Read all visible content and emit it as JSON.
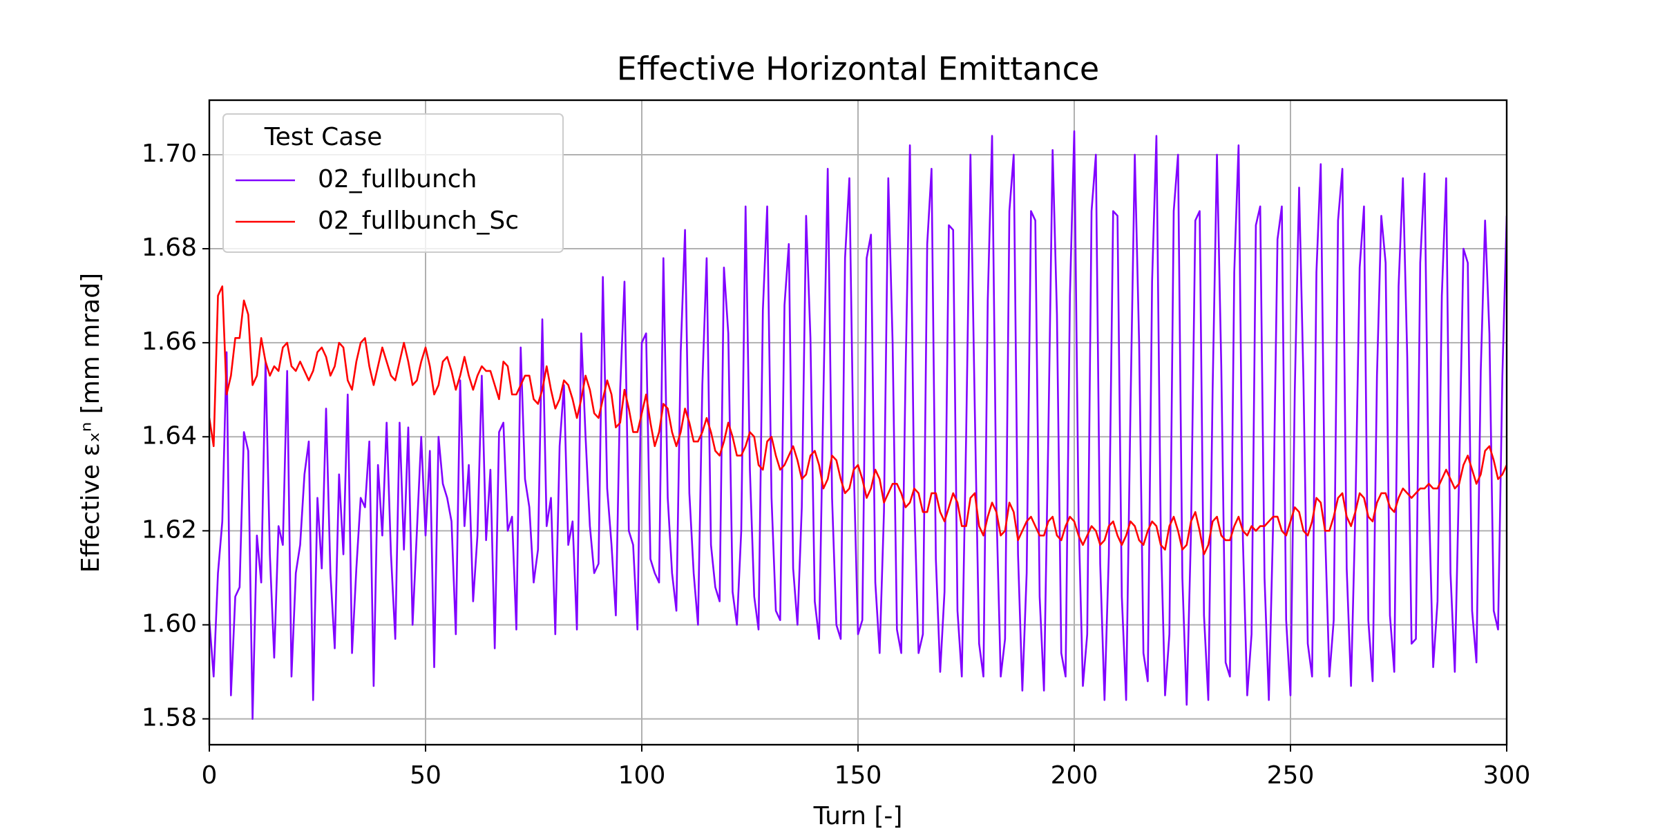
{
  "chart_data": {
    "type": "line",
    "title": "Effective Horizontal Emittance",
    "xlabel": "Turn [-]",
    "ylabel": "Effective εₓⁿ [mm mrad]",
    "legend_title": "Test Case",
    "legend": "upper left",
    "grid": true,
    "xlim": [
      0,
      300
    ],
    "ylim": [
      1.5745,
      1.7116
    ],
    "xticks": [
      0,
      50,
      100,
      150,
      200,
      250,
      300
    ],
    "yticks": [
      1.58,
      {
        "value": 1.6,
        "label": "1.60"
      },
      1.62,
      1.64,
      1.66,
      1.68,
      {
        "value": 1.7,
        "label": "1.70"
      }
    ],
    "x": [
      0,
      1,
      2,
      3,
      4,
      5,
      6,
      7,
      8,
      9,
      10,
      11,
      12,
      13,
      14,
      15,
      16,
      17,
      18,
      19,
      20,
      21,
      22,
      23,
      24,
      25,
      26,
      27,
      28,
      29,
      30,
      31,
      32,
      33,
      34,
      35,
      36,
      37,
      38,
      39,
      40,
      41,
      42,
      43,
      44,
      45,
      46,
      47,
      48,
      49,
      50,
      51,
      52,
      53,
      54,
      55,
      56,
      57,
      58,
      59,
      60,
      61,
      62,
      63,
      64,
      65,
      66,
      67,
      68,
      69,
      70,
      71,
      72,
      73,
      74,
      75,
      76,
      77,
      78,
      79,
      80,
      81,
      82,
      83,
      84,
      85,
      86,
      87,
      88,
      89,
      90,
      91,
      92,
      93,
      94,
      95,
      96,
      97,
      98,
      99,
      100,
      101,
      102,
      103,
      104,
      105,
      106,
      107,
      108,
      109,
      110,
      111,
      112,
      113,
      114,
      115,
      116,
      117,
      118,
      119,
      120,
      121,
      122,
      123,
      124,
      125,
      126,
      127,
      128,
      129,
      130,
      131,
      132,
      133,
      134,
      135,
      136,
      137,
      138,
      139,
      140,
      141,
      142,
      143,
      144,
      145,
      146,
      147,
      148,
      149,
      150,
      151,
      152,
      153,
      154,
      155,
      156,
      157,
      158,
      159,
      160,
      161,
      162,
      163,
      164,
      165,
      166,
      167,
      168,
      169,
      170,
      171,
      172,
      173,
      174,
      175,
      176,
      177,
      178,
      179,
      180,
      181,
      182,
      183,
      184,
      185,
      186,
      187,
      188,
      189,
      190,
      191,
      192,
      193,
      194,
      195,
      196,
      197,
      198,
      199,
      200,
      201,
      202,
      203,
      204,
      205,
      206,
      207,
      208,
      209,
      210,
      211,
      212,
      213,
      214,
      215,
      216,
      217,
      218,
      219,
      220,
      221,
      222,
      223,
      224,
      225,
      226,
      227,
      228,
      229,
      230,
      231,
      232,
      233,
      234,
      235,
      236,
      237,
      238,
      239,
      240,
      241,
      242,
      243,
      244,
      245,
      246,
      247,
      248,
      249,
      250,
      251,
      252,
      253,
      254,
      255,
      256,
      257,
      258,
      259,
      260,
      261,
      262,
      263,
      264,
      265,
      266,
      267,
      268,
      269,
      270,
      271,
      272,
      273,
      274,
      275,
      276,
      277,
      278,
      279,
      280,
      281,
      282,
      283,
      284,
      285,
      286,
      287,
      288,
      289,
      290,
      291,
      292,
      293,
      294,
      295,
      296,
      297,
      298,
      299,
      300
    ],
    "series": [
      {
        "name": "02_fullbunch",
        "color": "#8000ff",
        "values": [
          1.601,
          1.589,
          1.611,
          1.622,
          1.658,
          1.585,
          1.606,
          1.608,
          1.641,
          1.637,
          1.58,
          1.619,
          1.609,
          1.656,
          1.615,
          1.593,
          1.621,
          1.617,
          1.654,
          1.589,
          1.611,
          1.617,
          1.632,
          1.639,
          1.584,
          1.627,
          1.612,
          1.646,
          1.611,
          1.595,
          1.632,
          1.615,
          1.649,
          1.594,
          1.612,
          1.627,
          1.625,
          1.639,
          1.587,
          1.634,
          1.619,
          1.643,
          1.615,
          1.597,
          1.643,
          1.616,
          1.642,
          1.6,
          1.62,
          1.64,
          1.619,
          1.637,
          1.591,
          1.64,
          1.63,
          1.627,
          1.622,
          1.598,
          1.652,
          1.621,
          1.634,
          1.605,
          1.619,
          1.653,
          1.618,
          1.633,
          1.595,
          1.641,
          1.643,
          1.62,
          1.623,
          1.599,
          1.659,
          1.631,
          1.625,
          1.609,
          1.616,
          1.665,
          1.621,
          1.627,
          1.598,
          1.638,
          1.651,
          1.617,
          1.622,
          1.599,
          1.662,
          1.64,
          1.621,
          1.611,
          1.613,
          1.674,
          1.629,
          1.617,
          1.602,
          1.65,
          1.673,
          1.62,
          1.617,
          1.599,
          1.66,
          1.662,
          1.614,
          1.611,
          1.609,
          1.678,
          1.627,
          1.611,
          1.603,
          1.658,
          1.684,
          1.628,
          1.611,
          1.6,
          1.651,
          1.678,
          1.617,
          1.608,
          1.605,
          1.676,
          1.662,
          1.607,
          1.6,
          1.62,
          1.689,
          1.633,
          1.606,
          1.599,
          1.667,
          1.689,
          1.627,
          1.603,
          1.601,
          1.668,
          1.681,
          1.612,
          1.6,
          1.625,
          1.687,
          1.661,
          1.605,
          1.597,
          1.649,
          1.697,
          1.627,
          1.6,
          1.597,
          1.678,
          1.695,
          1.634,
          1.598,
          1.601,
          1.678,
          1.683,
          1.609,
          1.594,
          1.624,
          1.695,
          1.66,
          1.599,
          1.594,
          1.654,
          1.702,
          1.627,
          1.594,
          1.598,
          1.681,
          1.697,
          1.614,
          1.59,
          1.607,
          1.685,
          1.684,
          1.603,
          1.589,
          1.64,
          1.7,
          1.646,
          1.596,
          1.589,
          1.669,
          1.704,
          1.625,
          1.589,
          1.597,
          1.688,
          1.7,
          1.615,
          1.586,
          1.611,
          1.688,
          1.686,
          1.606,
          1.586,
          1.64,
          1.701,
          1.666,
          1.594,
          1.589,
          1.67,
          1.705,
          1.623,
          1.587,
          1.598,
          1.688,
          1.7,
          1.613,
          1.584,
          1.615,
          1.688,
          1.687,
          1.606,
          1.584,
          1.646,
          1.7,
          1.66,
          1.594,
          1.588,
          1.673,
          1.704,
          1.62,
          1.585,
          1.598,
          1.688,
          1.7,
          1.61,
          1.583,
          1.62,
          1.686,
          1.688,
          1.602,
          1.584,
          1.65,
          1.7,
          1.655,
          1.592,
          1.589,
          1.675,
          1.702,
          1.618,
          1.585,
          1.598,
          1.685,
          1.689,
          1.61,
          1.584,
          1.622,
          1.682,
          1.689,
          1.601,
          1.585,
          1.65,
          1.693,
          1.652,
          1.596,
          1.589,
          1.675,
          1.698,
          1.62,
          1.589,
          1.601,
          1.686,
          1.697,
          1.612,
          1.587,
          1.624,
          1.676,
          1.689,
          1.601,
          1.588,
          1.653,
          1.687,
          1.677,
          1.602,
          1.59,
          1.672,
          1.695,
          1.657,
          1.596,
          1.597,
          1.677,
          1.696,
          1.627,
          1.591,
          1.605,
          1.67,
          1.695,
          1.611,
          1.59,
          1.632,
          1.68,
          1.677,
          1.603,
          1.592,
          1.654,
          1.686,
          1.662,
          1.603,
          1.599,
          1.653,
          1.687
        ]
      },
      {
        "name": "02_fullbunch_Sc",
        "color": "#ff0000",
        "values": [
          1.644,
          1.638,
          1.67,
          1.672,
          1.649,
          1.653,
          1.661,
          1.661,
          1.669,
          1.666,
          1.651,
          1.653,
          1.661,
          1.656,
          1.653,
          1.655,
          1.654,
          1.659,
          1.66,
          1.655,
          1.654,
          1.656,
          1.654,
          1.652,
          1.654,
          1.658,
          1.659,
          1.657,
          1.653,
          1.655,
          1.66,
          1.659,
          1.652,
          1.65,
          1.656,
          1.66,
          1.661,
          1.655,
          1.651,
          1.655,
          1.659,
          1.656,
          1.653,
          1.652,
          1.656,
          1.66,
          1.656,
          1.651,
          1.652,
          1.656,
          1.659,
          1.655,
          1.649,
          1.651,
          1.656,
          1.657,
          1.654,
          1.65,
          1.653,
          1.657,
          1.653,
          1.65,
          1.653,
          1.655,
          1.654,
          1.654,
          1.651,
          1.648,
          1.656,
          1.655,
          1.649,
          1.649,
          1.651,
          1.653,
          1.653,
          1.648,
          1.647,
          1.65,
          1.655,
          1.65,
          1.646,
          1.648,
          1.652,
          1.651,
          1.648,
          1.644,
          1.648,
          1.653,
          1.65,
          1.645,
          1.644,
          1.648,
          1.652,
          1.649,
          1.642,
          1.643,
          1.65,
          1.646,
          1.641,
          1.641,
          1.645,
          1.649,
          1.643,
          1.638,
          1.641,
          1.647,
          1.646,
          1.641,
          1.638,
          1.641,
          1.646,
          1.643,
          1.639,
          1.639,
          1.641,
          1.644,
          1.641,
          1.637,
          1.636,
          1.639,
          1.643,
          1.64,
          1.636,
          1.636,
          1.638,
          1.641,
          1.64,
          1.634,
          1.633,
          1.639,
          1.64,
          1.636,
          1.633,
          1.634,
          1.636,
          1.638,
          1.635,
          1.631,
          1.632,
          1.636,
          1.637,
          1.634,
          1.629,
          1.631,
          1.636,
          1.635,
          1.631,
          1.628,
          1.629,
          1.633,
          1.634,
          1.631,
          1.627,
          1.629,
          1.633,
          1.631,
          1.626,
          1.628,
          1.63,
          1.63,
          1.628,
          1.625,
          1.626,
          1.629,
          1.628,
          1.624,
          1.624,
          1.628,
          1.628,
          1.624,
          1.622,
          1.625,
          1.628,
          1.626,
          1.621,
          1.621,
          1.627,
          1.628,
          1.621,
          1.619,
          1.623,
          1.626,
          1.624,
          1.619,
          1.62,
          1.626,
          1.624,
          1.618,
          1.62,
          1.622,
          1.623,
          1.621,
          1.619,
          1.619,
          1.622,
          1.623,
          1.619,
          1.618,
          1.621,
          1.623,
          1.622,
          1.619,
          1.617,
          1.619,
          1.621,
          1.62,
          1.617,
          1.618,
          1.621,
          1.622,
          1.619,
          1.617,
          1.619,
          1.622,
          1.621,
          1.618,
          1.617,
          1.62,
          1.622,
          1.621,
          1.617,
          1.616,
          1.621,
          1.623,
          1.62,
          1.616,
          1.617,
          1.622,
          1.624,
          1.62,
          1.615,
          1.617,
          1.622,
          1.623,
          1.619,
          1.618,
          1.618,
          1.621,
          1.623,
          1.62,
          1.619,
          1.621,
          1.62,
          1.621,
          1.621,
          1.622,
          1.623,
          1.623,
          1.62,
          1.619,
          1.622,
          1.625,
          1.624,
          1.62,
          1.619,
          1.622,
          1.627,
          1.626,
          1.62,
          1.62,
          1.623,
          1.627,
          1.628,
          1.623,
          1.621,
          1.624,
          1.628,
          1.627,
          1.623,
          1.622,
          1.626,
          1.628,
          1.628,
          1.625,
          1.624,
          1.627,
          1.629,
          1.628,
          1.627,
          1.628,
          1.629,
          1.629,
          1.63,
          1.629,
          1.629,
          1.631,
          1.633,
          1.631,
          1.629,
          1.63,
          1.634,
          1.636,
          1.633,
          1.63,
          1.632,
          1.637,
          1.638,
          1.635,
          1.631,
          1.632,
          1.634
        ]
      }
    ]
  }
}
